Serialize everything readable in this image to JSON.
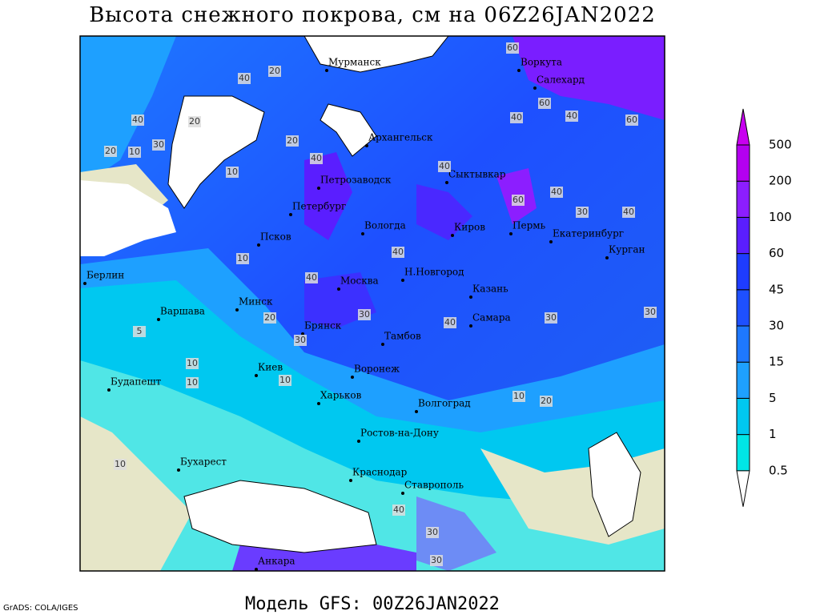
{
  "title": "Высота снежного покрова, см на 06Z26JAN2022",
  "footer": {
    "model": "Модель GFS: 00Z26JAN2022",
    "credit": "GrADS: COLA/IGES"
  },
  "legend": {
    "levels": [
      0.5,
      1,
      5,
      15,
      30,
      45,
      60,
      100,
      200,
      500
    ],
    "colors": [
      "#a0ffff",
      "#00e6e6",
      "#00c8f0",
      "#1ea0ff",
      "#1e78ff",
      "#1e50ff",
      "#1e3cff",
      "#5a1eff",
      "#8c1eff",
      "#b400f0"
    ],
    "under_color": "#ffffff",
    "over_color": "#c800f0"
  },
  "cities": [
    "Мурманск",
    "Воркута",
    "Салехард",
    "Архангельск",
    "Сыктывкар",
    "Петрозаводск",
    "Петербург",
    "Вологда",
    "Киров",
    "Пермь",
    "Екатеринбург",
    "Курган",
    "Псков",
    "Берлин",
    "Н.Новгород",
    "Москва",
    "Казань",
    "Варшава",
    "Минск",
    "Брянск",
    "Самара",
    "Тамбов",
    "Киев",
    "Воронеж",
    "Будапешт",
    "Харьков",
    "Волгоград",
    "Ростов-на-Дону",
    "Бухарест",
    "Краснодар",
    "Ставрополь",
    "Анкара"
  ],
  "contour_labels": [
    40,
    20,
    40,
    20,
    20,
    10,
    30,
    10,
    20,
    40,
    60,
    60,
    40,
    60,
    40,
    40,
    60,
    40,
    30,
    40,
    10,
    40,
    40,
    30,
    40,
    30,
    20,
    30,
    10,
    5,
    10,
    10,
    10,
    30,
    20,
    10,
    40,
    30,
    30
  ]
}
